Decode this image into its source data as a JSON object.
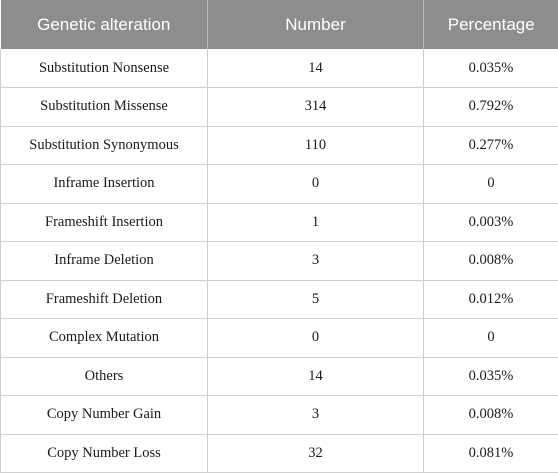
{
  "table": {
    "headers": [
      "Genetic alteration",
      "Number",
      "Percentage"
    ],
    "rows": [
      {
        "alteration": "Substitution Nonsense",
        "number": "14",
        "percentage": "0.035%"
      },
      {
        "alteration": "Substitution Missense",
        "number": "314",
        "percentage": "0.792%"
      },
      {
        "alteration": "Substitution Synonymous",
        "number": "110",
        "percentage": "0.277%"
      },
      {
        "alteration": "Inframe Insertion",
        "number": "0",
        "percentage": "0"
      },
      {
        "alteration": "Frameshift Insertion",
        "number": "1",
        "percentage": "0.003%"
      },
      {
        "alteration": "Inframe Deletion",
        "number": "3",
        "percentage": "0.008%"
      },
      {
        "alteration": "Frameshift Deletion",
        "number": "5",
        "percentage": "0.012%"
      },
      {
        "alteration": "Complex Mutation",
        "number": "0",
        "percentage": "0"
      },
      {
        "alteration": "Others",
        "number": "14",
        "percentage": "0.035%"
      },
      {
        "alteration": "Copy Number Gain",
        "number": "3",
        "percentage": "0.008%"
      },
      {
        "alteration": "Copy Number Loss",
        "number": "32",
        "percentage": "0.081%"
      }
    ],
    "colors": {
      "header_background": "#8d8d8d",
      "header_text": "#ffffff",
      "grid_line": "#cfcfcf"
    }
  }
}
